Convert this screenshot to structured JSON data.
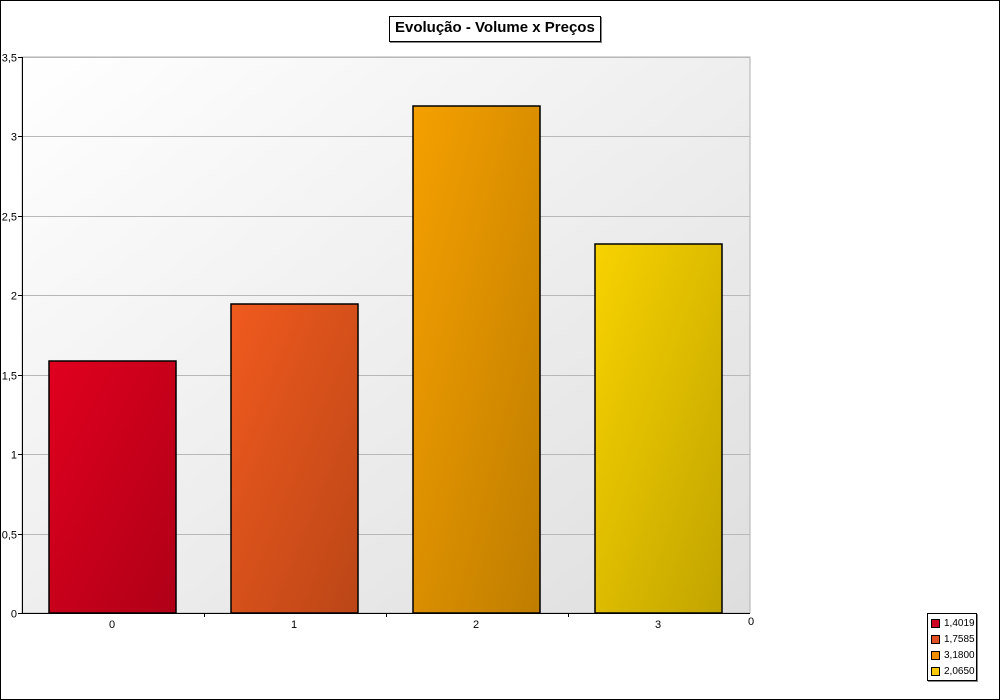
{
  "chart_data": {
    "type": "bar",
    "title": "Evolução - Volume x Preços",
    "categories": [
      "0",
      "1",
      "2",
      "3"
    ],
    "values": [
      1.585,
      1.945,
      3.19,
      2.32
    ],
    "bar_colors": [
      "#e0001e",
      "#f05a1e",
      "#f5a000",
      "#f8d200"
    ],
    "ylim": [
      0,
      3.5
    ],
    "y_ticks": [
      "0",
      "0,5",
      "1",
      "1,5",
      "2",
      "2,5",
      "3",
      "3,5"
    ],
    "y_tick_values": [
      0,
      0.5,
      1,
      1.5,
      2,
      2.5,
      3,
      3.5
    ],
    "x_axis_end_label": "0",
    "grid": true,
    "legend_placement": "bottom-right",
    "legend": [
      {
        "label": "1,4019",
        "color": "#cc0022"
      },
      {
        "label": "1,7585",
        "color": "#e05020"
      },
      {
        "label": "3,1800",
        "color": "#f09000"
      },
      {
        "label": "2,0650",
        "color": "#f8c800"
      }
    ]
  }
}
